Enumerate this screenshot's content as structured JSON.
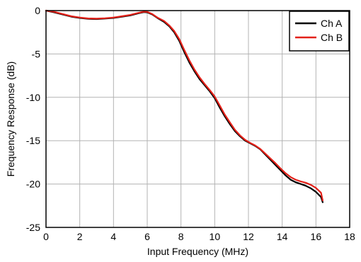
{
  "chart_data": {
    "type": "line",
    "xlabel": "Input Frequency (MHz)",
    "ylabel": "Frequency Response (dB)",
    "xlim": [
      0,
      18
    ],
    "ylim": [
      -25,
      0
    ],
    "xticks": [
      0,
      2,
      4,
      6,
      8,
      10,
      12,
      14,
      16,
      18
    ],
    "yticks": [
      0,
      -5,
      -10,
      -15,
      -20,
      -25
    ],
    "grid": true,
    "legend_position": "top-right",
    "series": [
      {
        "name": "Ch A",
        "color": "#000000",
        "x": [
          0,
          0.5,
          1,
          1.5,
          2,
          2.5,
          3,
          3.5,
          4,
          4.5,
          5,
          5.5,
          5.8,
          6,
          6.3,
          6.6,
          7,
          7.3,
          7.6,
          7.9,
          8.2,
          8.5,
          8.8,
          9.1,
          9.4,
          9.7,
          10,
          10.3,
          10.6,
          10.9,
          11.2,
          11.5,
          11.8,
          12.1,
          12.4,
          12.7,
          13,
          13.3,
          13.6,
          13.9,
          14.2,
          14.5,
          14.8,
          15.1,
          15.4,
          15.7,
          16,
          16.3,
          16.4
        ],
        "y": [
          0,
          -0.2,
          -0.45,
          -0.7,
          -0.85,
          -0.95,
          -0.98,
          -0.92,
          -0.85,
          -0.7,
          -0.55,
          -0.3,
          -0.18,
          -0.2,
          -0.45,
          -0.85,
          -1.3,
          -1.8,
          -2.5,
          -3.5,
          -4.8,
          -6.0,
          -7.0,
          -7.9,
          -8.6,
          -9.3,
          -10.1,
          -11.2,
          -12.2,
          -13.1,
          -13.9,
          -14.5,
          -15.0,
          -15.3,
          -15.6,
          -16.0,
          -16.6,
          -17.2,
          -17.8,
          -18.4,
          -19.0,
          -19.5,
          -19.8,
          -20.0,
          -20.2,
          -20.5,
          -20.9,
          -21.5,
          -22.1
        ]
      },
      {
        "name": "Ch B",
        "color": "#e32119",
        "x": [
          0,
          0.5,
          1,
          1.5,
          2,
          2.5,
          3,
          3.5,
          4,
          4.5,
          5,
          5.5,
          5.8,
          6,
          6.3,
          6.6,
          7,
          7.3,
          7.6,
          7.9,
          8.2,
          8.5,
          8.8,
          9.1,
          9.4,
          9.7,
          10,
          10.3,
          10.6,
          10.9,
          11.2,
          11.5,
          11.8,
          12.1,
          12.4,
          12.7,
          13,
          13.3,
          13.6,
          13.9,
          14.2,
          14.5,
          14.8,
          15.1,
          15.4,
          15.7,
          16,
          16.3,
          16.4
        ],
        "y": [
          0,
          -0.15,
          -0.4,
          -0.65,
          -0.8,
          -0.9,
          -0.93,
          -0.88,
          -0.8,
          -0.65,
          -0.5,
          -0.25,
          -0.12,
          -0.15,
          -0.4,
          -0.8,
          -1.2,
          -1.7,
          -2.35,
          -3.3,
          -4.55,
          -5.75,
          -6.8,
          -7.7,
          -8.45,
          -9.15,
          -9.9,
          -10.95,
          -12.0,
          -12.9,
          -13.75,
          -14.4,
          -14.9,
          -15.25,
          -15.55,
          -15.95,
          -16.5,
          -17.05,
          -17.6,
          -18.2,
          -18.75,
          -19.2,
          -19.5,
          -19.7,
          -19.85,
          -20.1,
          -20.45,
          -21.0,
          -21.9
        ]
      }
    ]
  }
}
